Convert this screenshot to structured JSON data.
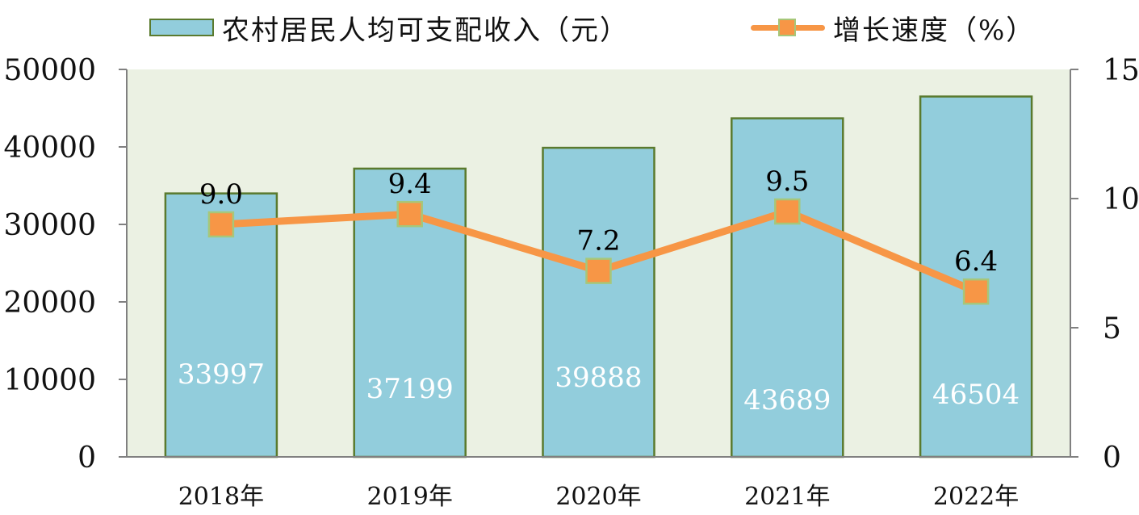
{
  "legend": {
    "bar_label": "农村居民人均可支配收入（元）",
    "line_label": "增长速度（%）"
  },
  "colors": {
    "bar_fill": "#92cddc",
    "bar_border": "#5a7a2e",
    "line": "#f79646",
    "marker_border": "#a6c77a",
    "plot_bg": "#ebf1e3",
    "axis": "#808080",
    "bar_value_text": "#ffffff",
    "line_value_text": "#000000"
  },
  "chart_data": {
    "type": "bar",
    "categories": [
      "2018年",
      "2019年",
      "2020年",
      "2021年",
      "2022年"
    ],
    "series": [
      {
        "name": "农村居民人均可支配收入（元）",
        "type": "bar",
        "axis": "left",
        "values": [
          33997,
          37199,
          39888,
          43689,
          46504
        ],
        "labels": [
          "33997",
          "37199",
          "39888",
          "43689",
          "46504"
        ]
      },
      {
        "name": "增长速度（%）",
        "type": "line",
        "axis": "right",
        "values": [
          9.0,
          9.4,
          7.2,
          9.5,
          6.4
        ],
        "labels": [
          "9.0",
          "9.4",
          "7.2",
          "9.5",
          "6.4"
        ]
      }
    ],
    "ylim_left": [
      0,
      50000
    ],
    "yticks_left": [
      "0",
      "10000",
      "20000",
      "30000",
      "40000",
      "50000"
    ],
    "ylim_right": [
      0,
      15
    ],
    "yticks_right": [
      "0",
      "5",
      "10",
      "15"
    ],
    "legend_position": "top",
    "grid": false
  }
}
